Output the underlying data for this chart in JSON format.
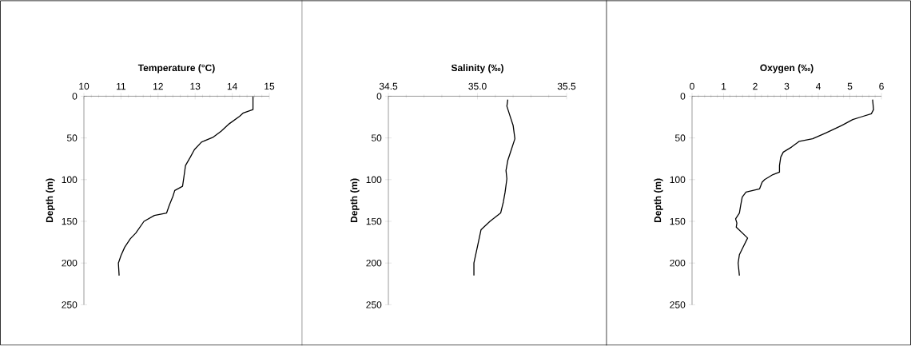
{
  "chart_data": [
    {
      "type": "line",
      "xlabel": "Temperature (°C)",
      "ylabel": "Depth (m)",
      "color": "#000000",
      "x": [
        14.56,
        14.56,
        14.3,
        14.2,
        13.92,
        13.7,
        13.49,
        13.17,
        12.98,
        12.87,
        12.74,
        12.69,
        12.66,
        12.45,
        12.4,
        12.3,
        12.23,
        11.9,
        11.62,
        11.4,
        11.25,
        11.1,
        11.0,
        10.93,
        10.95
      ],
      "values": [
        0,
        16,
        20,
        24,
        33,
        42,
        49,
        55,
        64,
        73,
        83,
        99,
        108,
        113,
        120,
        131,
        140,
        143,
        150,
        164,
        171,
        181,
        191,
        200,
        215
      ],
      "xlim": [
        10,
        15
      ],
      "ylim": [
        250,
        0
      ],
      "xticks": [
        10,
        11,
        12,
        13,
        14,
        15
      ],
      "yticks": [
        0,
        50,
        100,
        150,
        200,
        250
      ]
    },
    {
      "type": "line",
      "xlabel": "Salinity (‰)",
      "ylabel": "Depth (m)",
      "color": "#000000",
      "x": [
        35.17,
        35.165,
        35.18,
        35.2,
        35.21,
        35.19,
        35.17,
        35.16,
        35.165,
        35.155,
        35.145,
        35.13,
        35.07,
        35.02,
        35.0,
        34.98,
        34.98
      ],
      "values": [
        4,
        12,
        22,
        35,
        51,
        64,
        77,
        89,
        99,
        115,
        127,
        140,
        150,
        160,
        180,
        200,
        215
      ],
      "xlim": [
        34.5,
        35.5
      ],
      "ylim": [
        250,
        0
      ],
      "xticks": [
        34.5,
        {
          "value": 35,
          "label": "35.0"
        },
        35.5
      ],
      "yticks": [
        0,
        50,
        100,
        150,
        200,
        250
      ]
    },
    {
      "type": "line",
      "xlabel": "Oxygen (‰)",
      "ylabel": "Depth (m)",
      "color": "#000000",
      "x": [
        5.72,
        5.75,
        5.68,
        5.34,
        5.09,
        4.75,
        4.24,
        3.82,
        3.4,
        3.15,
        2.89,
        2.81,
        2.77,
        2.77,
        2.56,
        2.3,
        2.22,
        2.14,
        1.71,
        1.59,
        1.54,
        1.5,
        1.38,
        1.42,
        1.4,
        1.76,
        1.63,
        1.5,
        1.46,
        1.5
      ],
      "values": [
        4,
        16,
        21,
        25,
        28,
        35,
        44,
        51,
        54,
        61,
        67,
        73,
        83,
        91,
        94,
        100,
        103,
        111,
        115,
        121,
        131,
        140,
        147,
        152,
        157,
        170,
        180,
        190,
        200,
        215
      ],
      "xlim": [
        0,
        6
      ],
      "ylim": [
        250,
        0
      ],
      "xticks": [
        0,
        1,
        2,
        3,
        4,
        5,
        6
      ],
      "yticks": [
        0,
        50,
        100,
        150,
        200,
        250
      ]
    }
  ]
}
